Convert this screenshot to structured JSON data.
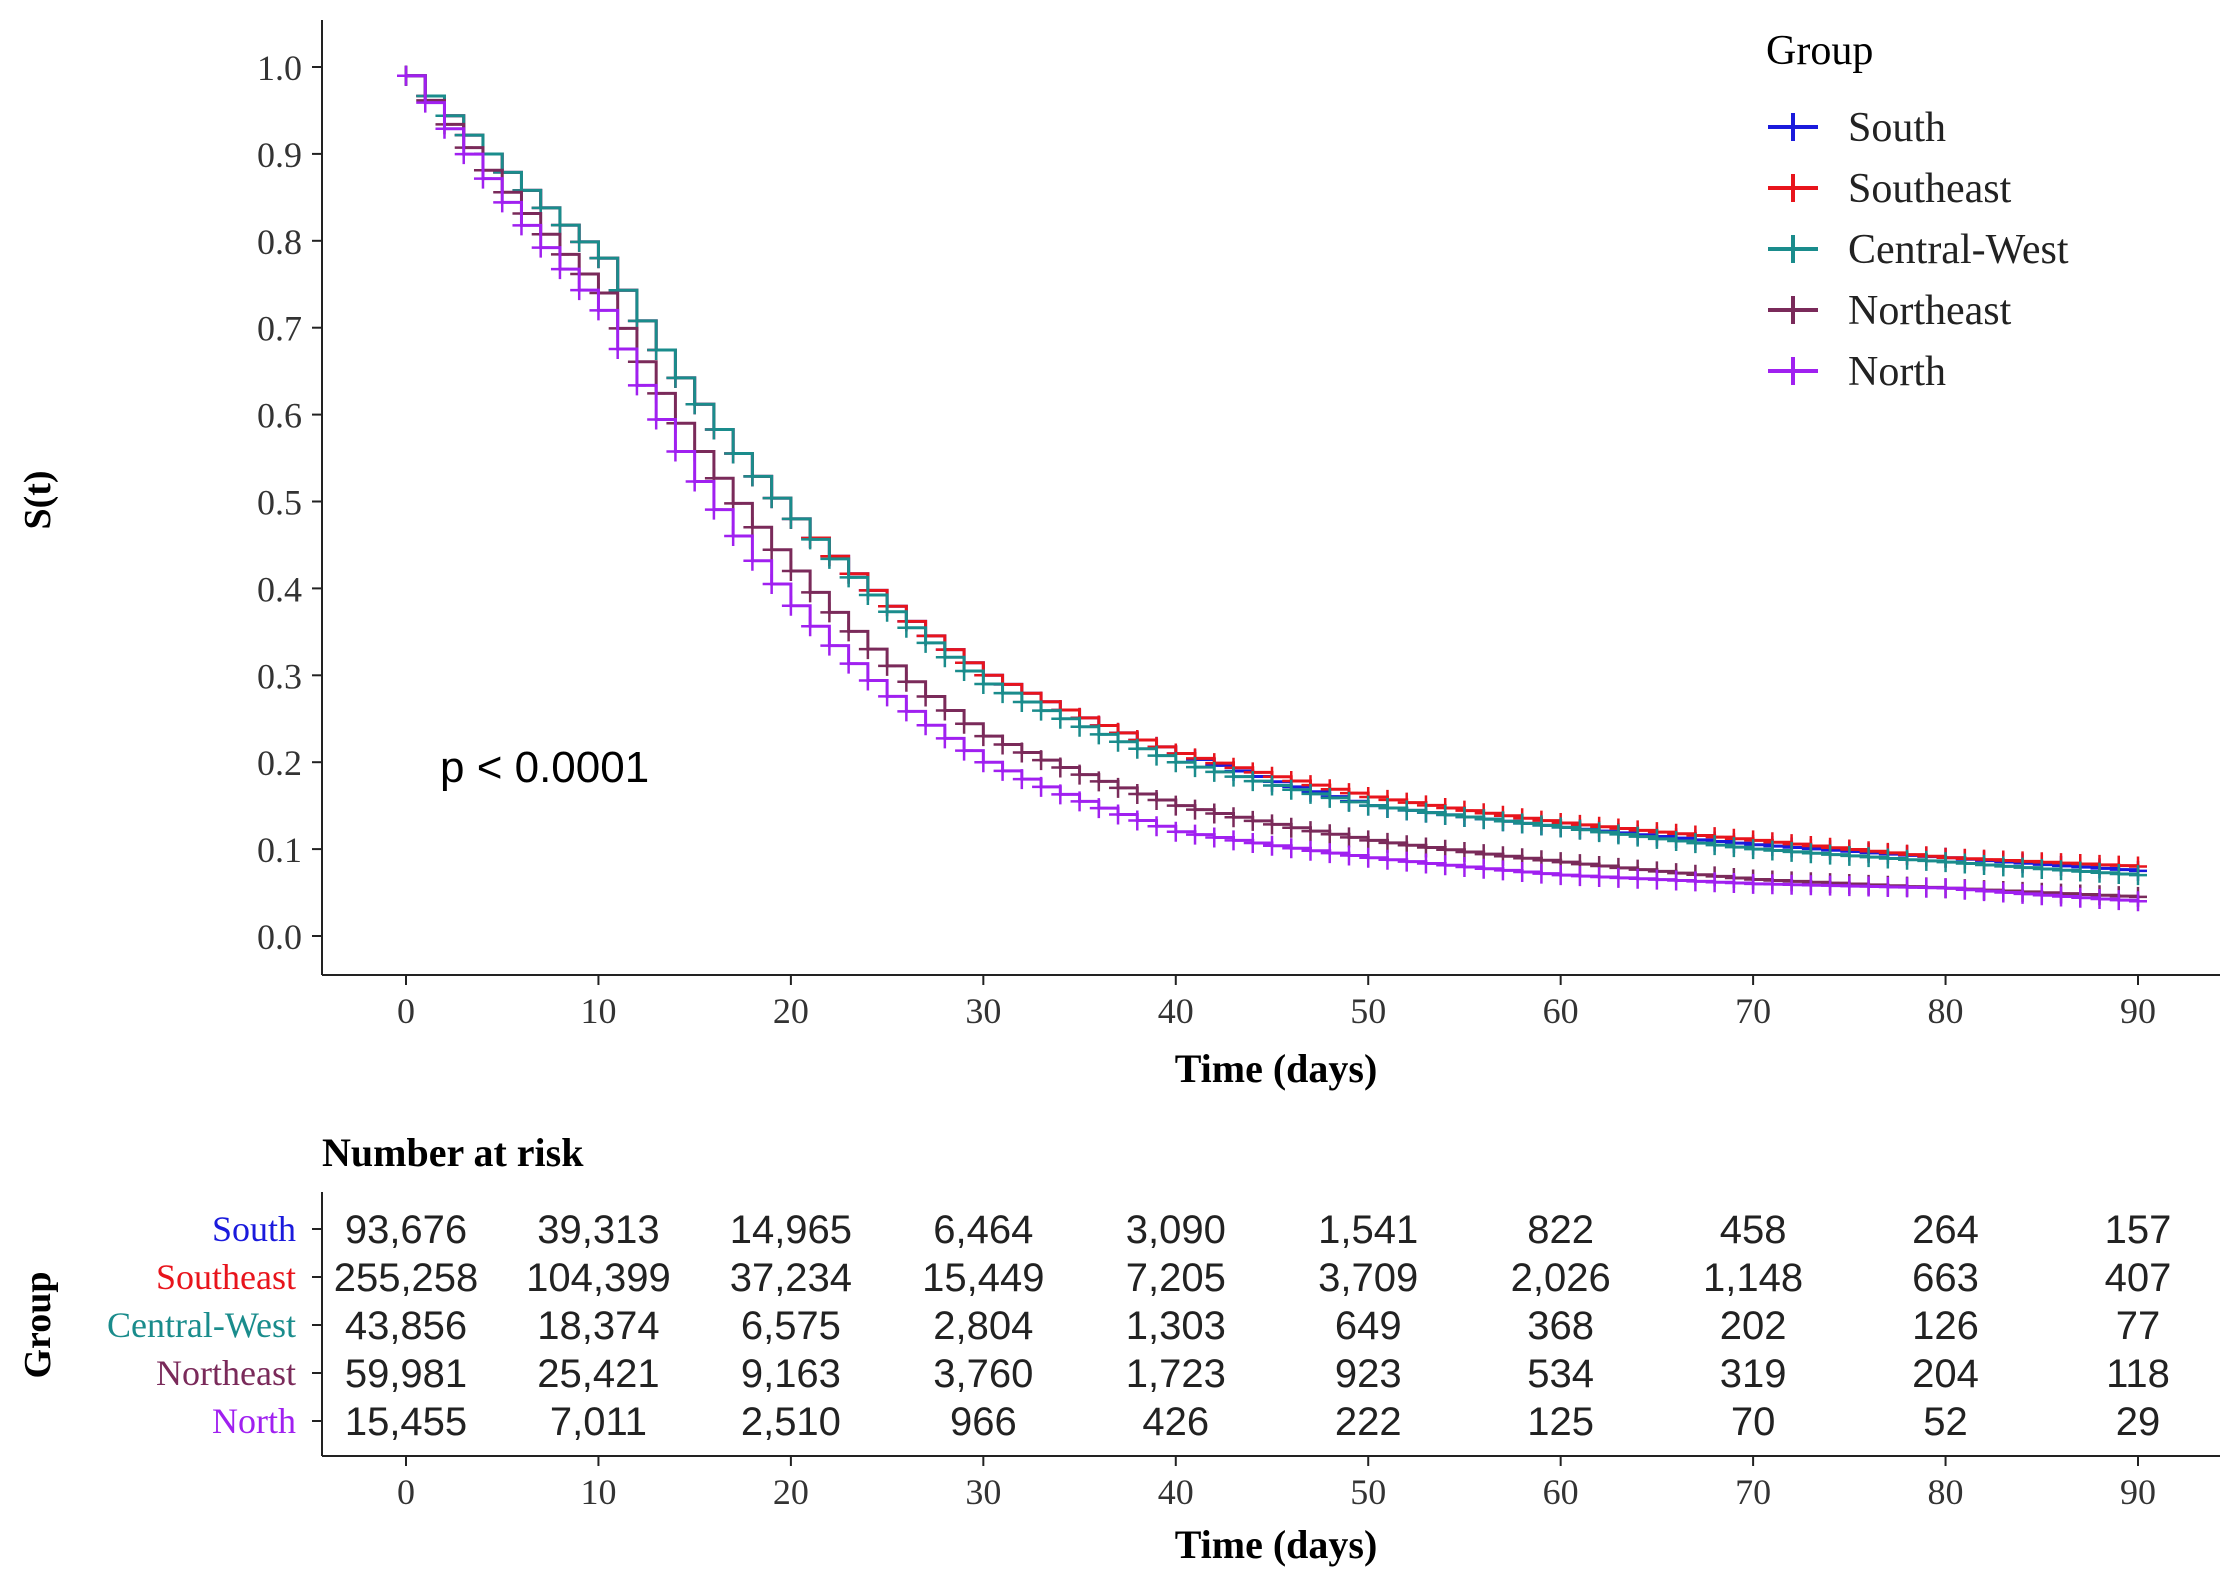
{
  "chart_data": {
    "type": "line",
    "subtype": "kaplan-meier step survival curves",
    "title": "",
    "xlabel": "Time (days)",
    "ylabel": "S(t)",
    "xlim": [
      0,
      90
    ],
    "ylim": [
      0,
      1
    ],
    "x_ticks": [
      0,
      10,
      20,
      30,
      40,
      50,
      60,
      70,
      80,
      90
    ],
    "y_ticks": [
      "0.0",
      "0.1",
      "0.2",
      "0.3",
      "0.4",
      "0.5",
      "0.6",
      "0.7",
      "0.8",
      "0.9",
      "1.0"
    ],
    "grid": false,
    "legend_title": "Group",
    "legend_position": "top-right",
    "annotation": "p < 0.0001",
    "x": [
      0,
      10,
      20,
      30,
      40,
      50,
      60,
      70,
      80,
      90
    ],
    "series": [
      {
        "name": "South",
        "color": "#1a1adc",
        "values": [
          0.99,
          0.78,
          0.48,
          0.3,
          0.21,
          0.15,
          0.125,
          0.105,
          0.09,
          0.075
        ]
      },
      {
        "name": "Southeast",
        "color": "#e8141c",
        "values": [
          0.99,
          0.78,
          0.48,
          0.3,
          0.21,
          0.16,
          0.13,
          0.11,
          0.09,
          0.08
        ]
      },
      {
        "name": "Central-West",
        "color": "#1a8c8c",
        "values": [
          0.99,
          0.78,
          0.48,
          0.29,
          0.2,
          0.15,
          0.125,
          0.1,
          0.085,
          0.07
        ]
      },
      {
        "name": "Northeast",
        "color": "#7a2a5a",
        "values": [
          0.99,
          0.74,
          0.42,
          0.23,
          0.15,
          0.11,
          0.085,
          0.065,
          0.055,
          0.045
        ]
      },
      {
        "name": "North",
        "color": "#a020f0",
        "values": [
          0.99,
          0.72,
          0.38,
          0.2,
          0.12,
          0.09,
          0.07,
          0.06,
          0.055,
          0.04
        ]
      }
    ],
    "risk_table": {
      "title": "Number at risk",
      "ylabel": "Group",
      "xlabel": "Time (days)",
      "rows": [
        {
          "name": "South",
          "color": "#1a1adc",
          "values": [
            "93,676",
            "39,313",
            "14,965",
            "6,464",
            "3,090",
            "1,541",
            "822",
            "458",
            "264",
            "157"
          ]
        },
        {
          "name": "Southeast",
          "color": "#e8141c",
          "values": [
            "255,258",
            "104,399",
            "37,234",
            "15,449",
            "7,205",
            "3,709",
            "2,026",
            "1,148",
            "663",
            "407"
          ]
        },
        {
          "name": "Central-West",
          "color": "#1a8c8c",
          "values": [
            "43,856",
            "18,374",
            "6,575",
            "2,804",
            "1,303",
            "649",
            "368",
            "202",
            "126",
            "77"
          ]
        },
        {
          "name": "Northeast",
          "color": "#7a2a5a",
          "values": [
            "59,981",
            "25,421",
            "9,163",
            "3,760",
            "1,723",
            "923",
            "534",
            "319",
            "204",
            "118"
          ]
        },
        {
          "name": "North",
          "color": "#a020f0",
          "values": [
            "15,455",
            "7,011",
            "2,510",
            "966",
            "426",
            "222",
            "125",
            "70",
            "52",
            "29"
          ]
        }
      ]
    }
  }
}
